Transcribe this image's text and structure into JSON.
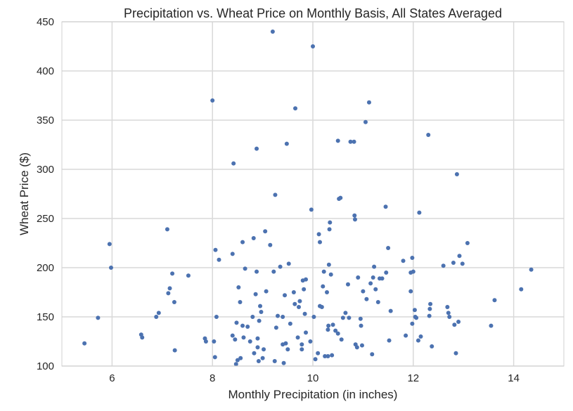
{
  "chart_data": {
    "type": "scatter",
    "title": "Precipitation vs. Wheat Price on Monthly Basis, All States Averaged",
    "xlabel": "Monthly Precipitation (in inches)",
    "ylabel": "Wheat Price ($)",
    "xlim": [
      5,
      15
    ],
    "ylim": [
      100,
      450
    ],
    "xticks": [
      6,
      8,
      10,
      12,
      14
    ],
    "yticks": [
      100,
      150,
      200,
      250,
      300,
      350,
      400,
      450
    ],
    "grid": true,
    "marker_color": "#4c72b0",
    "grid_color": "#d9d9d9",
    "points": [
      [
        5.45,
        123
      ],
      [
        5.72,
        149
      ],
      [
        5.95,
        224
      ],
      [
        5.98,
        200
      ],
      [
        6.58,
        132
      ],
      [
        6.6,
        129
      ],
      [
        6.88,
        150
      ],
      [
        6.93,
        154
      ],
      [
        7.1,
        239
      ],
      [
        7.12,
        174
      ],
      [
        7.15,
        179
      ],
      [
        7.2,
        194
      ],
      [
        7.24,
        165
      ],
      [
        7.25,
        116
      ],
      [
        7.52,
        192
      ],
      [
        7.85,
        128
      ],
      [
        7.87,
        125
      ],
      [
        8.0,
        370
      ],
      [
        8.03,
        125
      ],
      [
        8.05,
        109
      ],
      [
        8.06,
        218
      ],
      [
        8.08,
        150
      ],
      [
        8.13,
        208
      ],
      [
        8.4,
        214
      ],
      [
        8.42,
        306
      ],
      [
        8.4,
        131
      ],
      [
        8.45,
        127
      ],
      [
        8.47,
        102
      ],
      [
        8.48,
        144
      ],
      [
        8.5,
        106
      ],
      [
        8.52,
        180
      ],
      [
        8.55,
        165
      ],
      [
        8.56,
        108
      ],
      [
        8.6,
        226
      ],
      [
        8.6,
        141
      ],
      [
        8.62,
        129
      ],
      [
        8.65,
        199
      ],
      [
        8.7,
        140
      ],
      [
        8.75,
        125
      ],
      [
        8.8,
        150
      ],
      [
        8.82,
        230
      ],
      [
        8.83,
        113
      ],
      [
        8.86,
        173
      ],
      [
        8.88,
        321
      ],
      [
        8.88,
        196
      ],
      [
        8.9,
        128
      ],
      [
        8.9,
        119
      ],
      [
        8.92,
        105
      ],
      [
        8.93,
        146
      ],
      [
        8.95,
        161
      ],
      [
        8.97,
        155
      ],
      [
        9.0,
        108
      ],
      [
        9.02,
        117
      ],
      [
        9.05,
        237
      ],
      [
        9.07,
        176
      ],
      [
        9.15,
        223
      ],
      [
        9.2,
        440
      ],
      [
        9.22,
        196
      ],
      [
        9.24,
        105
      ],
      [
        9.25,
        274
      ],
      [
        9.27,
        139
      ],
      [
        9.3,
        151
      ],
      [
        9.35,
        201
      ],
      [
        9.4,
        122
      ],
      [
        9.4,
        150
      ],
      [
        9.42,
        103
      ],
      [
        9.44,
        172
      ],
      [
        9.46,
        123
      ],
      [
        9.48,
        326
      ],
      [
        9.5,
        117
      ],
      [
        9.52,
        204
      ],
      [
        9.55,
        143
      ],
      [
        9.62,
        175
      ],
      [
        9.64,
        163
      ],
      [
        9.65,
        362
      ],
      [
        9.7,
        129
      ],
      [
        9.72,
        160
      ],
      [
        9.74,
        166
      ],
      [
        9.78,
        122
      ],
      [
        9.78,
        117
      ],
      [
        9.8,
        187
      ],
      [
        9.82,
        178
      ],
      [
        9.84,
        153
      ],
      [
        9.86,
        134
      ],
      [
        9.86,
        188
      ],
      [
        9.95,
        125
      ],
      [
        9.97,
        259
      ],
      [
        10.0,
        425
      ],
      [
        10.02,
        150
      ],
      [
        10.05,
        107
      ],
      [
        10.1,
        113
      ],
      [
        10.12,
        234
      ],
      [
        10.14,
        226
      ],
      [
        10.14,
        161
      ],
      [
        10.18,
        160
      ],
      [
        10.2,
        181
      ],
      [
        10.22,
        196
      ],
      [
        10.24,
        110
      ],
      [
        10.28,
        175
      ],
      [
        10.3,
        110
      ],
      [
        10.3,
        137
      ],
      [
        10.31,
        141
      ],
      [
        10.32,
        203
      ],
      [
        10.33,
        239
      ],
      [
        10.34,
        246
      ],
      [
        10.36,
        193
      ],
      [
        10.38,
        111
      ],
      [
        10.4,
        142
      ],
      [
        10.45,
        136
      ],
      [
        10.5,
        133
      ],
      [
        10.5,
        329
      ],
      [
        10.52,
        270
      ],
      [
        10.55,
        271
      ],
      [
        10.57,
        127
      ],
      [
        10.6,
        149
      ],
      [
        10.65,
        154
      ],
      [
        10.7,
        183
      ],
      [
        10.72,
        149
      ],
      [
        10.75,
        328
      ],
      [
        10.82,
        328
      ],
      [
        10.83,
        253
      ],
      [
        10.84,
        249
      ],
      [
        10.85,
        122
      ],
      [
        10.88,
        119
      ],
      [
        10.9,
        190
      ],
      [
        10.95,
        148
      ],
      [
        10.96,
        141
      ],
      [
        10.98,
        121
      ],
      [
        11.0,
        176
      ],
      [
        11.05,
        348
      ],
      [
        11.07,
        168
      ],
      [
        11.12,
        368
      ],
      [
        11.15,
        184
      ],
      [
        11.18,
        112
      ],
      [
        11.2,
        190
      ],
      [
        11.22,
        201
      ],
      [
        11.25,
        178
      ],
      [
        11.3,
        165
      ],
      [
        11.33,
        189
      ],
      [
        11.38,
        189
      ],
      [
        11.45,
        262
      ],
      [
        11.46,
        195
      ],
      [
        11.5,
        220
      ],
      [
        11.52,
        126
      ],
      [
        11.55,
        156
      ],
      [
        11.8,
        207
      ],
      [
        11.85,
        131
      ],
      [
        11.95,
        195
      ],
      [
        11.95,
        176
      ],
      [
        11.98,
        210
      ],
      [
        11.98,
        143
      ],
      [
        12.0,
        196
      ],
      [
        12.03,
        157
      ],
      [
        12.04,
        150
      ],
      [
        12.06,
        149
      ],
      [
        12.1,
        126
      ],
      [
        12.12,
        256
      ],
      [
        12.15,
        130
      ],
      [
        12.3,
        335
      ],
      [
        12.32,
        151
      ],
      [
        12.33,
        158
      ],
      [
        12.34,
        163
      ],
      [
        12.37,
        120
      ],
      [
        12.6,
        202
      ],
      [
        12.68,
        160
      ],
      [
        12.7,
        154
      ],
      [
        12.72,
        150
      ],
      [
        12.8,
        205
      ],
      [
        12.82,
        142
      ],
      [
        12.85,
        113
      ],
      [
        12.87,
        295
      ],
      [
        12.9,
        145
      ],
      [
        12.92,
        212
      ],
      [
        12.98,
        204
      ],
      [
        13.08,
        225
      ],
      [
        13.55,
        141
      ],
      [
        13.62,
        167
      ],
      [
        14.15,
        178
      ],
      [
        14.35,
        198
      ]
    ]
  }
}
